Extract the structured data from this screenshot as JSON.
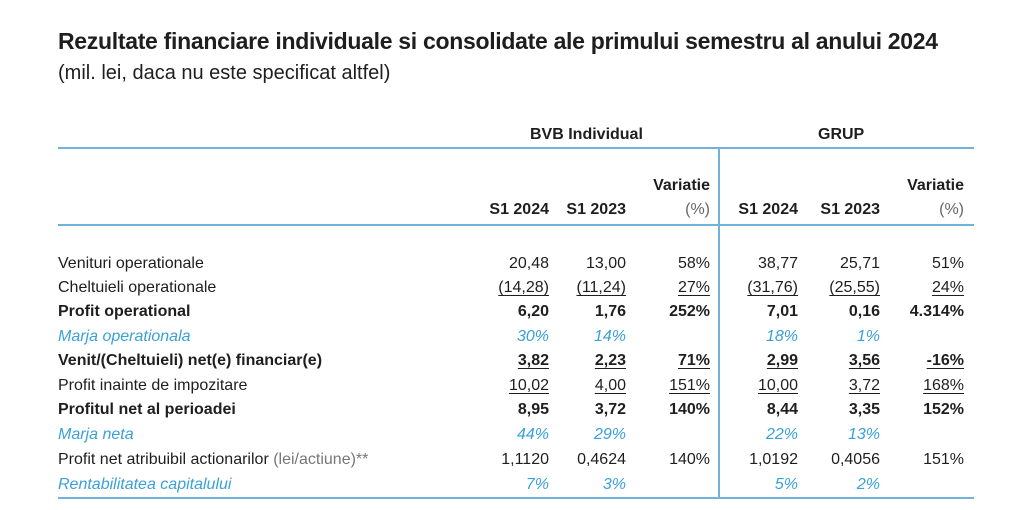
{
  "title": "Rezultate financiare individuale si consolidate ale primului semestru al anului 2024",
  "subtitle": "(mil. lei, daca nu este specificat altfel)",
  "groups": {
    "individual": "BVB Individual",
    "grup": "GRUP"
  },
  "columns": {
    "s1_2024": "S1 2024",
    "s1_2023": "S1 2023",
    "variatie": "Variatie",
    "variatie_unit": "(%)"
  },
  "rows": [
    {
      "label": "Venituri operationale",
      "values": [
        "20,48",
        "13,00",
        "58%",
        "38,77",
        "25,71",
        "51%"
      ]
    },
    {
      "label": "Cheltuieli operationale",
      "values": [
        "(14,28)",
        "(11,24)",
        "27%",
        "(31,76)",
        "(25,55)",
        "24%"
      ]
    },
    {
      "label": "Profit operational",
      "values": [
        "6,20",
        "1,76",
        "252%",
        "7,01",
        "0,16",
        "4.314%"
      ]
    },
    {
      "label": "Marja operationala",
      "values": [
        "30%",
        "14%",
        "",
        "18%",
        "1%",
        ""
      ]
    },
    {
      "label": "Venit/(Cheltuieli) net(e) financiar(e)",
      "values": [
        "3,82",
        "2,23",
        "71%",
        "2,99",
        "3,56",
        "-16%"
      ]
    },
    {
      "label": "Profit inainte de impozitare",
      "values": [
        "10,02",
        "4,00",
        "151%",
        "10,00",
        "3,72",
        "168%"
      ]
    },
    {
      "label": "Profitul net al perioadei",
      "values": [
        "8,95",
        "3,72",
        "140%",
        "8,44",
        "3,35",
        "152%"
      ]
    },
    {
      "label": "Marja neta",
      "values": [
        "44%",
        "29%",
        "",
        "22%",
        "13%",
        ""
      ]
    },
    {
      "label": "Profit net atribuibil actionarilor",
      "label_suffix": "(lei/actiune)**",
      "values": [
        "1,1120",
        "0,4624",
        "140%",
        "1,0192",
        "0,4056",
        "151%"
      ]
    },
    {
      "label": "Rentabilitatea capitalului",
      "values": [
        "7%",
        "3%",
        "",
        "5%",
        "2%",
        ""
      ]
    }
  ],
  "accent_color": "#6fb2dc",
  "italic_color": "#3aa0d8"
}
